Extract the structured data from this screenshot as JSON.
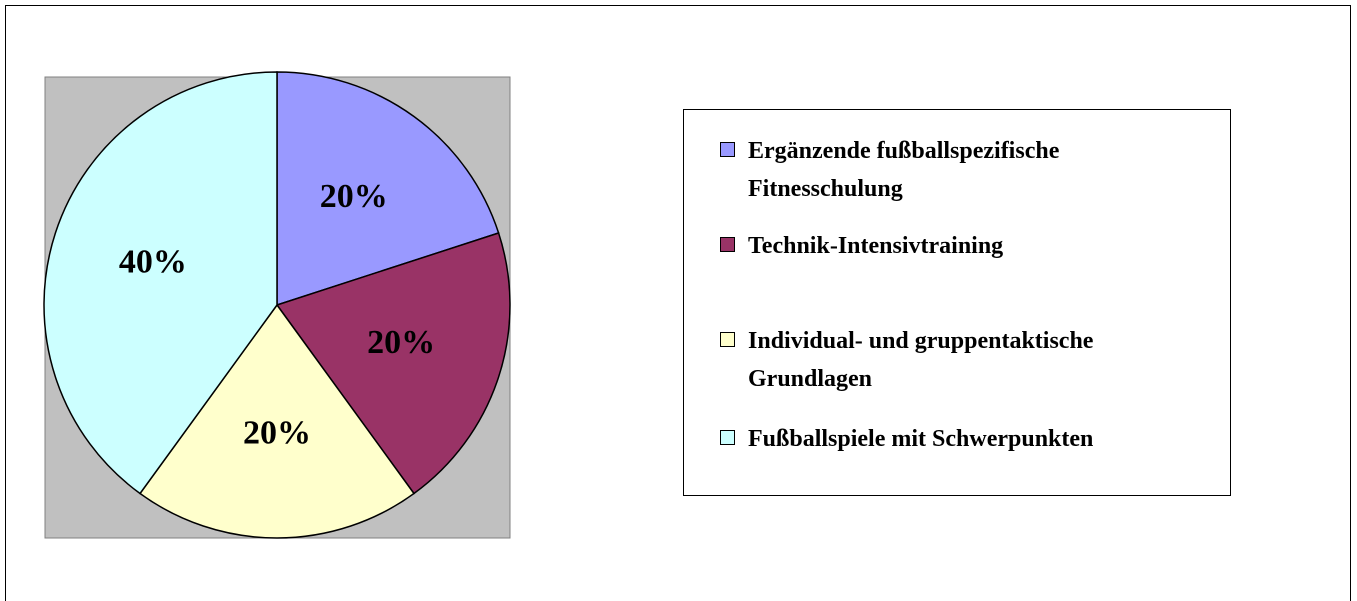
{
  "chart_data": {
    "type": "pie",
    "categories": [
      "Ergänzende fußballspezifische Fitnesschulung",
      "Technik-Intensivtraining",
      "Individual- und gruppentaktische Grundlagen",
      "Fußballspiele mit Schwerpunkten"
    ],
    "values": [
      20,
      20,
      20,
      40
    ],
    "value_labels": [
      "20%",
      "20%",
      "20%",
      "40%"
    ],
    "colors": [
      "#9999ff",
      "#993366",
      "#ffffcc",
      "#ccffff"
    ],
    "legend": "right"
  }
}
